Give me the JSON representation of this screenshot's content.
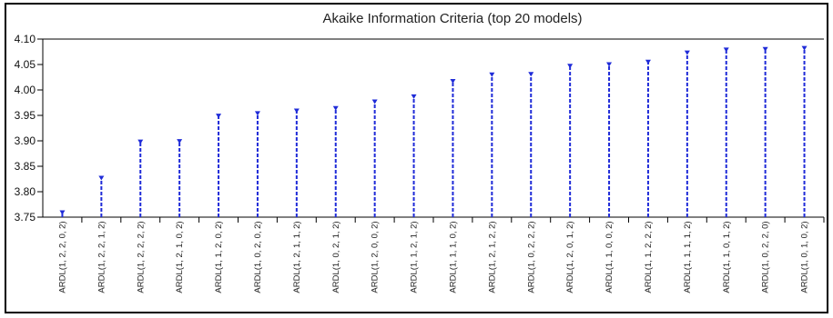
{
  "chart_data": {
    "type": "scatter",
    "title": "Akaike Information Criteria (top 20 models)",
    "xlabel": "",
    "ylabel": "",
    "ylim": [
      3.75,
      4.1
    ],
    "yticks": [
      "4.10",
      "4.05",
      "4.00",
      "3.95",
      "3.90",
      "3.85",
      "3.80",
      "3.75"
    ],
    "grid": false,
    "color": "#1f2bd8",
    "categories": [
      "ARDL(1, 2, 2, 0, 2)",
      "ARDL(1, 2, 2, 1, 2)",
      "ARDL(1, 2, 2, 2, 2)",
      "ARDL(1, 2, 1, 0, 2)",
      "ARDL(1, 1, 2, 0, 2)",
      "ARDL(1, 0, 2, 0, 2)",
      "ARDL(1, 2, 1, 1, 2)",
      "ARDL(1, 0, 2, 1, 2)",
      "ARDL(1, 2, 0, 0, 2)",
      "ARDL(1, 1, 2, 1, 2)",
      "ARDL(1, 1, 1, 0, 2)",
      "ARDL(1, 2, 1, 2, 2)",
      "ARDL(1, 0, 2, 2, 2)",
      "ARDL(1, 2, 0, 1, 2)",
      "ARDL(1, 1, 0, 0, 2)",
      "ARDL(1, 1, 2, 2, 2)",
      "ARDL(1, 1, 1, 1, 2)",
      "ARDL(1, 1, 0, 1, 2)",
      "ARDL(1, 0, 2, 2, 0)",
      "ARDL(1, 0, 1, 0, 2)"
    ],
    "values": [
      3.758,
      3.826,
      3.897,
      3.898,
      3.948,
      3.953,
      3.958,
      3.963,
      3.976,
      3.986,
      4.016,
      4.029,
      4.03,
      4.046,
      4.049,
      4.054,
      4.072,
      4.078,
      4.079,
      4.081
    ]
  }
}
